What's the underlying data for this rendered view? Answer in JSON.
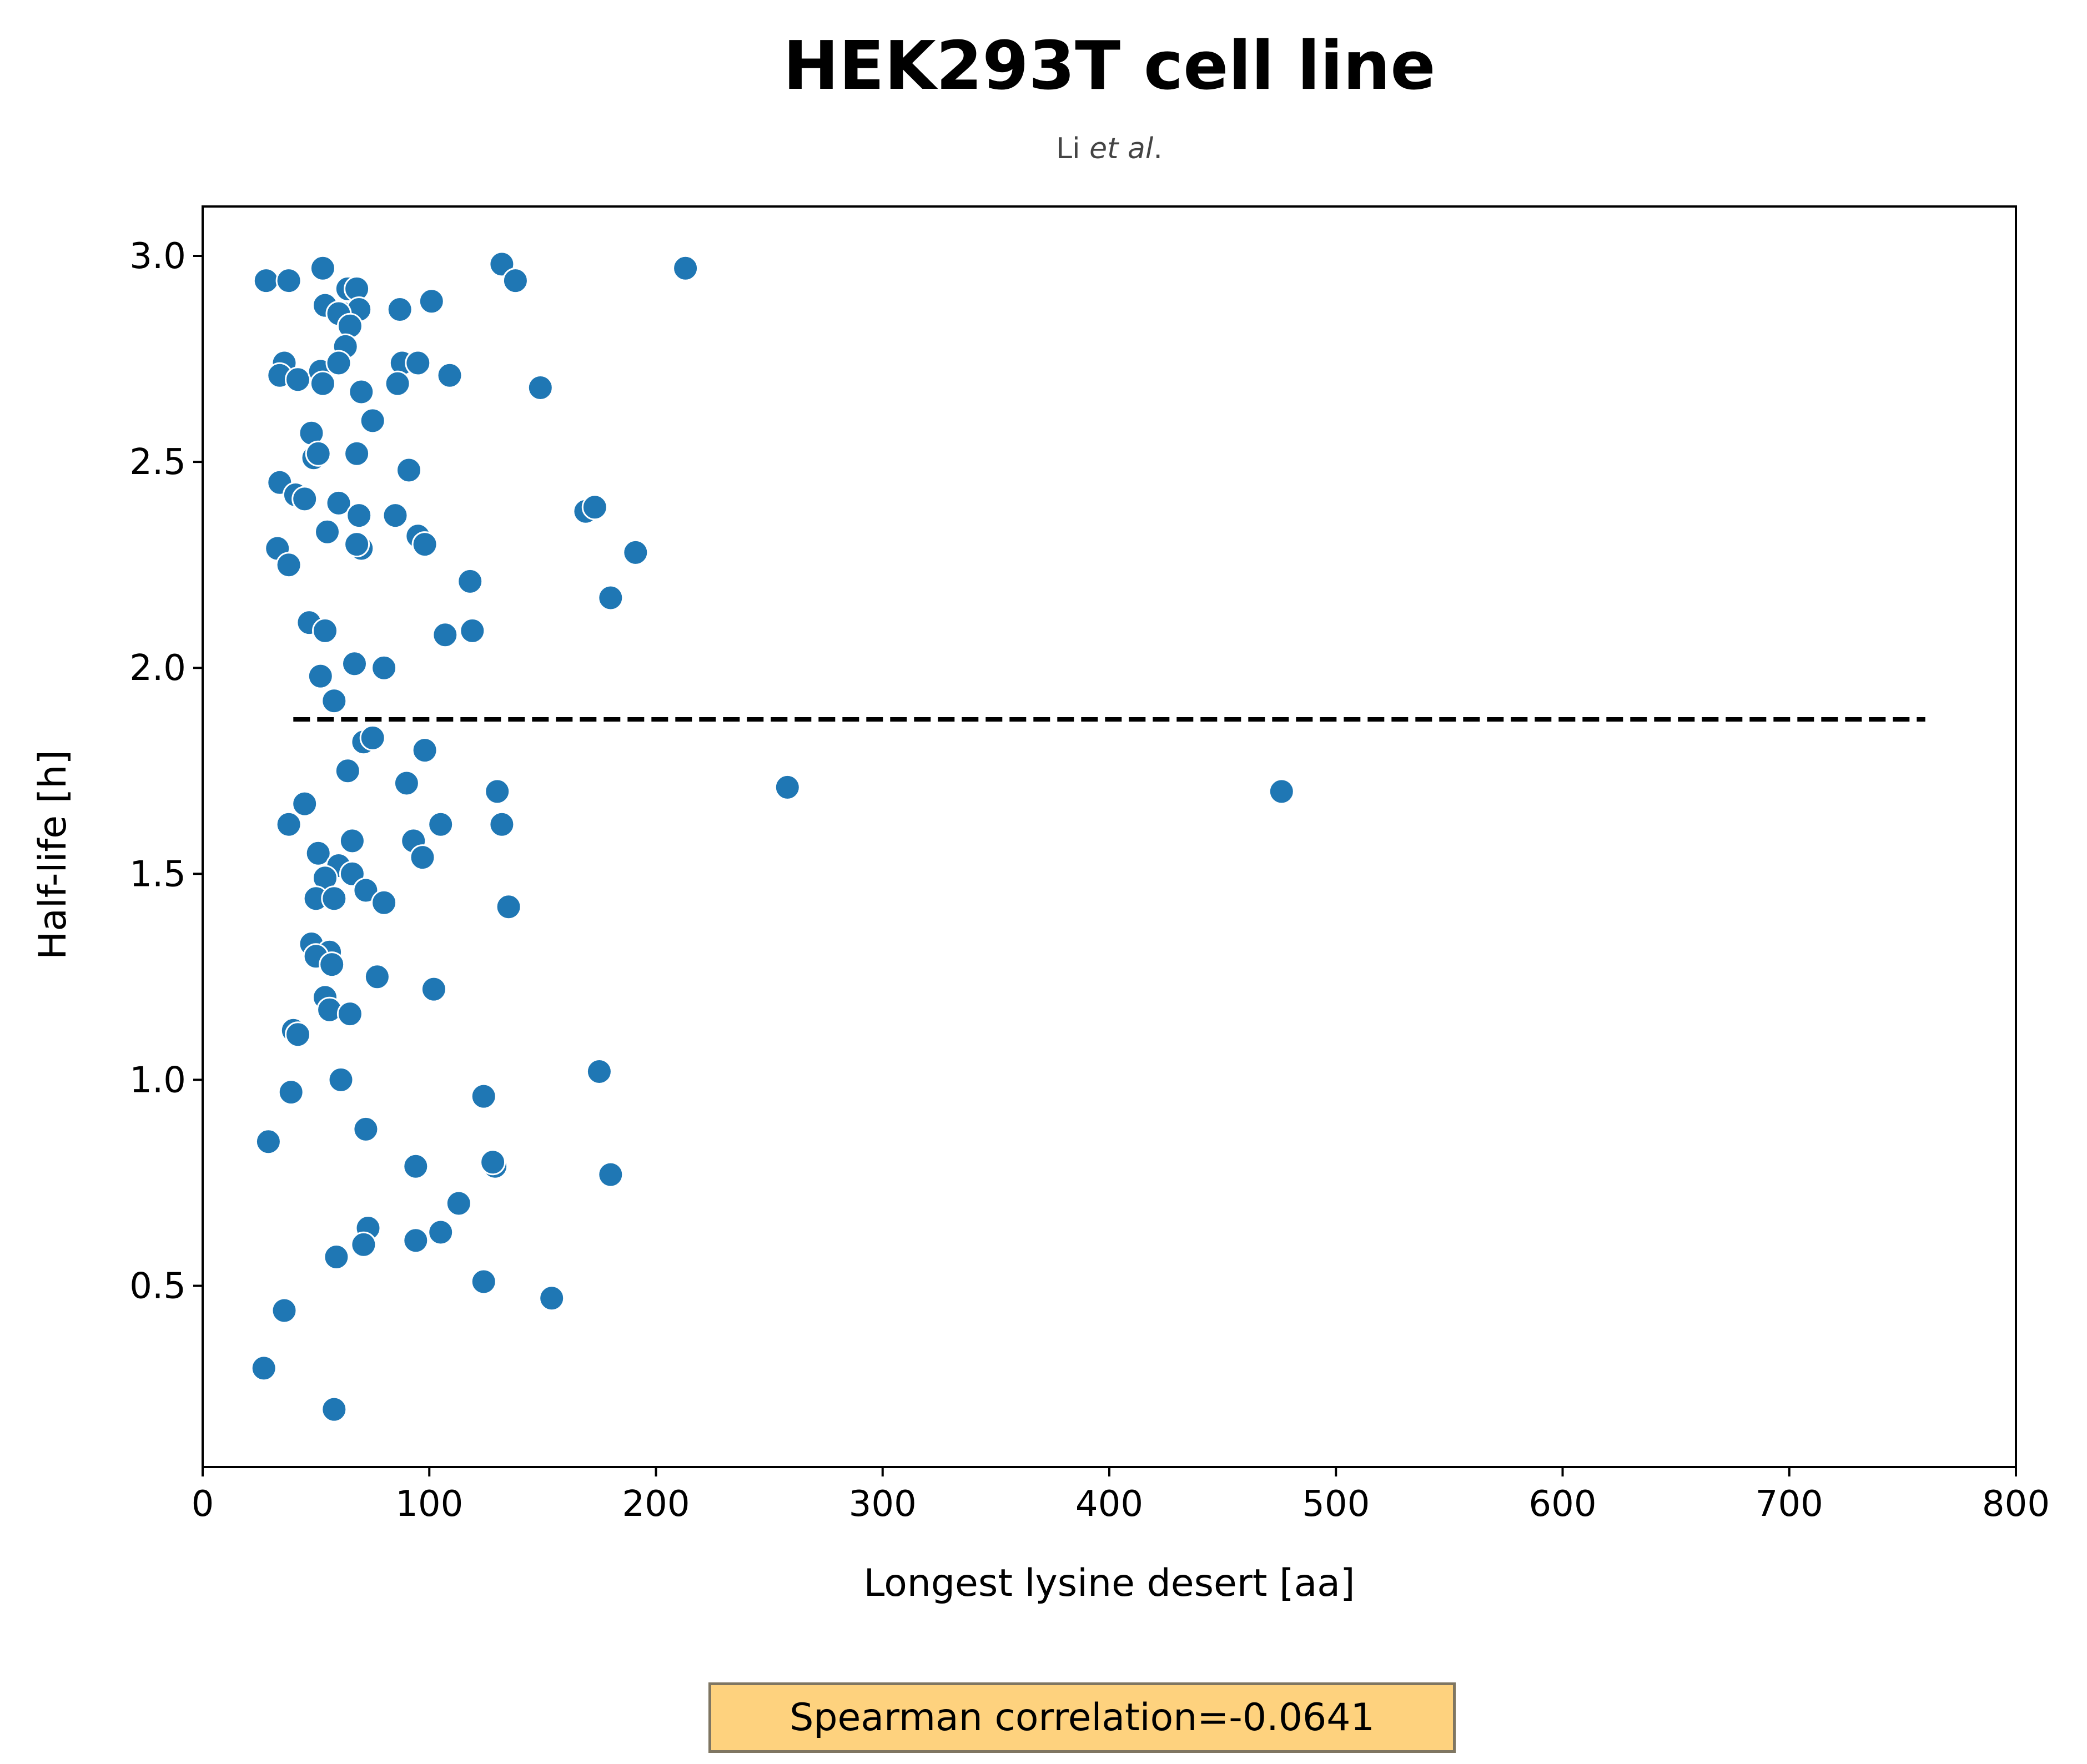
{
  "chart_data": {
    "type": "scatter",
    "title": "HEK293T cell line",
    "subtitle": {
      "prefix": "Li ",
      "italic": "et al",
      "suffix": "."
    },
    "xlabel": "Longest lysine desert [aa]",
    "ylabel": "Half-life [h]",
    "xlim": [
      0,
      800
    ],
    "ylim": [
      0.06,
      3.12
    ],
    "xticks": [
      0,
      100,
      200,
      300,
      400,
      500,
      600,
      700,
      800
    ],
    "xtick_labels": [
      "0",
      "100",
      "200",
      "300",
      "400",
      "500",
      "600",
      "700",
      "800"
    ],
    "yticks": [
      0.5,
      1.0,
      1.5,
      2.0,
      2.5,
      3.0
    ],
    "ytick_labels": [
      "0.5",
      "1.0",
      "1.5",
      "2.0",
      "2.5",
      "3.0"
    ],
    "grid": false,
    "point_color": "#1f77b4",
    "reference_line": {
      "style": "dashed",
      "color": "#000000",
      "y": 1.875,
      "x_start": 40,
      "x_end": 760
    },
    "annotation": {
      "text": "Spearman correlation=-0.0641",
      "background": "#fed27e",
      "border": "#7f7662"
    },
    "series": [
      {
        "points": [
          [
            28,
            2.94
          ],
          [
            38,
            2.94
          ],
          [
            53,
            2.97
          ],
          [
            64,
            2.92
          ],
          [
            68,
            2.92
          ],
          [
            132,
            2.98
          ],
          [
            138,
            2.94
          ],
          [
            213,
            2.97
          ],
          [
            54,
            2.88
          ],
          [
            62,
            2.86
          ],
          [
            69,
            2.87
          ],
          [
            60,
            2.86
          ],
          [
            65,
            2.83
          ],
          [
            87,
            2.87
          ],
          [
            101,
            2.89
          ],
          [
            63,
            2.78
          ],
          [
            36,
            2.74
          ],
          [
            34,
            2.71
          ],
          [
            42,
            2.7
          ],
          [
            52,
            2.72
          ],
          [
            53,
            2.69
          ],
          [
            60,
            2.74
          ],
          [
            88,
            2.74
          ],
          [
            95,
            2.74
          ],
          [
            109,
            2.71
          ],
          [
            70,
            2.67
          ],
          [
            86,
            2.69
          ],
          [
            149,
            2.68
          ],
          [
            75,
            2.6
          ],
          [
            48,
            2.57
          ],
          [
            49,
            2.51
          ],
          [
            51,
            2.52
          ],
          [
            68,
            2.52
          ],
          [
            91,
            2.48
          ],
          [
            34,
            2.45
          ],
          [
            41,
            2.42
          ],
          [
            45,
            2.41
          ],
          [
            60,
            2.4
          ],
          [
            69,
            2.37
          ],
          [
            85,
            2.37
          ],
          [
            55,
            2.33
          ],
          [
            95,
            2.32
          ],
          [
            70,
            2.29
          ],
          [
            68,
            2.3
          ],
          [
            98,
            2.3
          ],
          [
            169,
            2.38
          ],
          [
            173,
            2.39
          ],
          [
            191,
            2.28
          ],
          [
            33,
            2.29
          ],
          [
            38,
            2.25
          ],
          [
            118,
            2.21
          ],
          [
            180,
            2.17
          ],
          [
            47,
            2.11
          ],
          [
            54,
            2.09
          ],
          [
            107,
            2.08
          ],
          [
            119,
            2.09
          ],
          [
            67,
            2.01
          ],
          [
            80,
            2.0
          ],
          [
            52,
            1.98
          ],
          [
            58,
            1.92
          ],
          [
            71,
            1.82
          ],
          [
            75,
            1.83
          ],
          [
            98,
            1.8
          ],
          [
            64,
            1.75
          ],
          [
            90,
            1.72
          ],
          [
            130,
            1.7
          ],
          [
            258,
            1.71
          ],
          [
            476,
            1.7
          ],
          [
            45,
            1.67
          ],
          [
            38,
            1.62
          ],
          [
            105,
            1.62
          ],
          [
            132,
            1.62
          ],
          [
            93,
            1.58
          ],
          [
            66,
            1.58
          ],
          [
            51,
            1.55
          ],
          [
            60,
            1.52
          ],
          [
            97,
            1.54
          ],
          [
            66,
            1.5
          ],
          [
            54,
            1.49
          ],
          [
            72,
            1.46
          ],
          [
            50,
            1.44
          ],
          [
            58,
            1.44
          ],
          [
            80,
            1.43
          ],
          [
            135,
            1.42
          ],
          [
            48,
            1.33
          ],
          [
            56,
            1.31
          ],
          [
            50,
            1.3
          ],
          [
            57,
            1.28
          ],
          [
            77,
            1.25
          ],
          [
            102,
            1.22
          ],
          [
            54,
            1.2
          ],
          [
            56,
            1.17
          ],
          [
            65,
            1.16
          ],
          [
            40,
            1.12
          ],
          [
            42,
            1.11
          ],
          [
            175,
            1.02
          ],
          [
            61,
            1.0
          ],
          [
            39,
            0.97
          ],
          [
            124,
            0.96
          ],
          [
            72,
            0.88
          ],
          [
            29,
            0.85
          ],
          [
            129,
            0.79
          ],
          [
            128,
            0.8
          ],
          [
            94,
            0.79
          ],
          [
            180,
            0.77
          ],
          [
            113,
            0.7
          ],
          [
            73,
            0.64
          ],
          [
            71,
            0.6
          ],
          [
            94,
            0.61
          ],
          [
            105,
            0.63
          ],
          [
            59,
            0.57
          ],
          [
            124,
            0.51
          ],
          [
            154,
            0.47
          ],
          [
            36,
            0.44
          ],
          [
            27,
            0.3
          ],
          [
            58,
            0.2
          ]
        ]
      }
    ]
  }
}
